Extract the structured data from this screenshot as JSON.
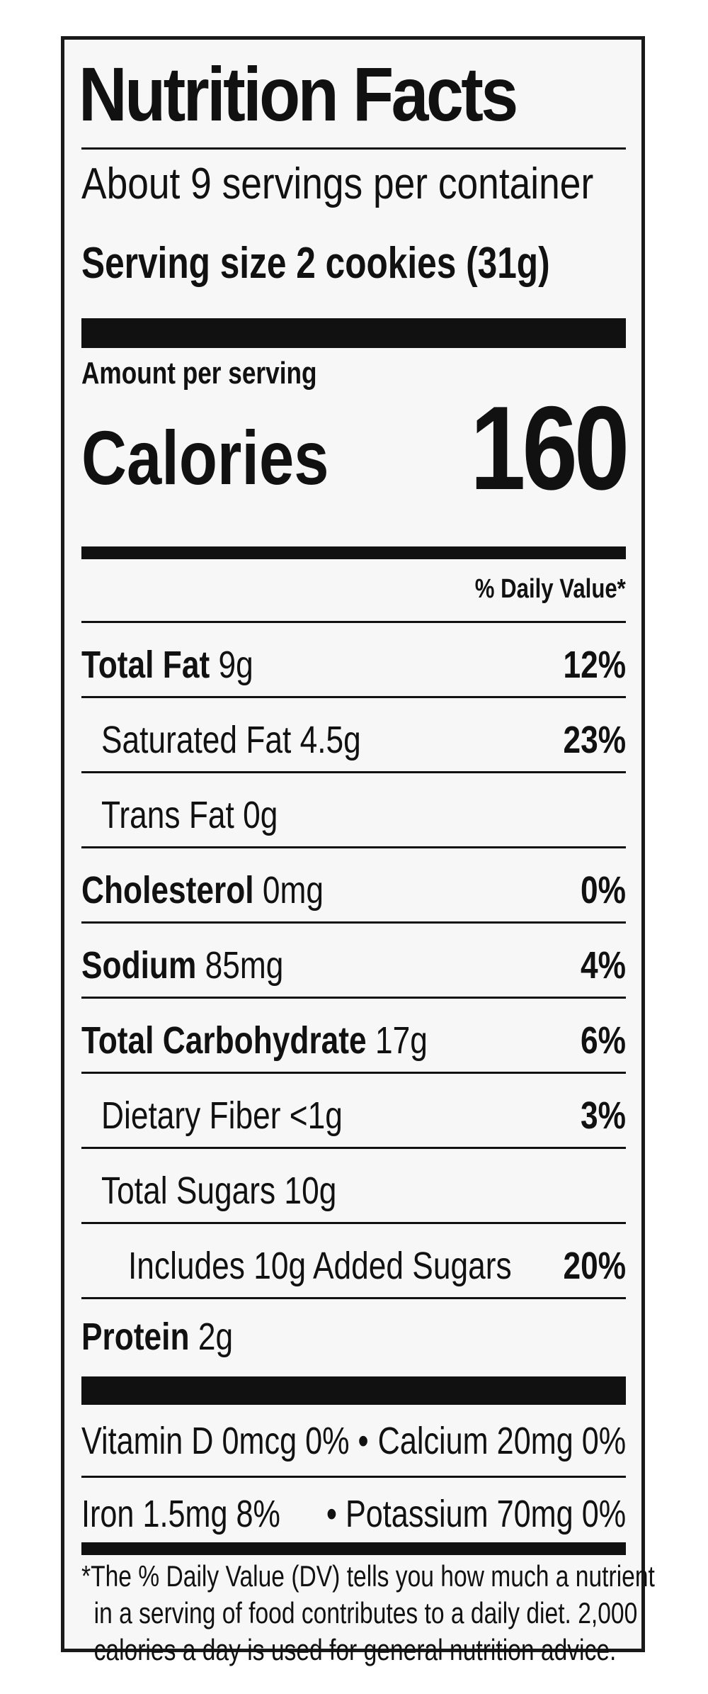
{
  "title": "Nutrition Facts",
  "servings_per_container": "About 9 servings per container",
  "serving_size": "Serving size  2 cookies (31g)",
  "amount_per_serving": "Amount per serving",
  "calories_label": "Calories",
  "calories_value": "160",
  "daily_value_header": "% Daily Value*",
  "nutrients": [
    {
      "name": "Total Fat",
      "amount": " 9g",
      "dv": "12%"
    },
    {
      "name": "Saturated Fat 4.5g",
      "amount": "",
      "dv": "23%"
    },
    {
      "name": "Trans Fat 0g",
      "amount": "",
      "dv": ""
    },
    {
      "name": "Cholesterol",
      "amount": " 0mg",
      "dv": "0%"
    },
    {
      "name": "Sodium",
      "amount": " 85mg",
      "dv": "4%"
    },
    {
      "name": "Total Carbohydrate",
      "amount": " 17g",
      "dv": "6%"
    },
    {
      "name": "Dietary Fiber <1g",
      "amount": "",
      "dv": "3%"
    },
    {
      "name": "Total Sugars 10g",
      "amount": "",
      "dv": ""
    },
    {
      "name": "Includes 10g Added Sugars",
      "amount": "",
      "dv": "20%"
    },
    {
      "name": "Protein",
      "amount": " 2g",
      "dv": ""
    }
  ],
  "vitamins": [
    {
      "left": "Vitamin D 0mcg 0%  •",
      "right": "Calcium 20mg 0%"
    },
    {
      "left": "Iron 1.5mg 8%",
      "right": "• Potassium 70mg 0%"
    }
  ],
  "footnote": [
    "*The % Daily Value (DV) tells you how much a nutrient",
    "in a serving of food contributes to a daily diet. 2,000",
    "calories a day is used for general nutrition advice."
  ]
}
